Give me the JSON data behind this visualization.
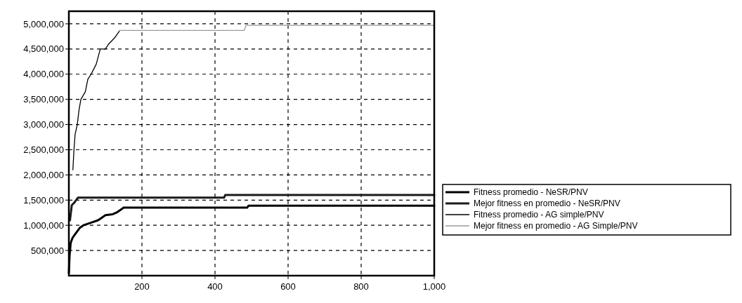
{
  "chart_data": {
    "type": "line",
    "xlim": [
      0,
      1000
    ],
    "xticks": [
      200,
      400,
      600,
      800,
      {
        "value": 1000,
        "label": "1,000"
      }
    ],
    "ylim": [
      0,
      5250000
    ],
    "yticks": [
      {
        "value": 500000,
        "label": "500,000"
      },
      {
        "value": 1000000,
        "label": "1,000,000"
      },
      {
        "value": 1500000,
        "label": "1,500,000"
      },
      {
        "value": 2000000,
        "label": "2,000,000"
      },
      {
        "value": 2500000,
        "label": "2,500,000"
      },
      {
        "value": 3000000,
        "label": "3,000,000"
      },
      {
        "value": 3500000,
        "label": "3,500,000"
      },
      {
        "value": 4000000,
        "label": "4,000,000"
      },
      {
        "value": 4500000,
        "label": "4,500,000"
      },
      {
        "value": 5000000,
        "label": "5,000,000"
      }
    ],
    "grid": true,
    "legend": "right",
    "marker": "none",
    "line_style": "solid",
    "series": [
      {
        "name": "Fitness promedio - NeSR/PNV",
        "color": "#000000",
        "x": [
          0,
          2,
          5,
          10,
          20,
          30,
          40,
          60,
          80,
          90,
          100,
          120,
          130,
          140,
          150,
          300,
          488,
          492,
          1000
        ],
        "values": [
          50000,
          400000,
          650000,
          750000,
          850000,
          950000,
          1000000,
          1050000,
          1100000,
          1150000,
          1200000,
          1220000,
          1250000,
          1300000,
          1350000,
          1350000,
          1350000,
          1390000,
          1390000
        ]
      },
      {
        "name": "Mejor fitness  en promedio - NeSR/PNV",
        "color": "#1a1a1a",
        "x": [
          3,
          8,
          15,
          25,
          425,
          428,
          1000
        ],
        "values": [
          1100000,
          1400000,
          1450000,
          1550000,
          1550000,
          1600000,
          1600000
        ]
      },
      {
        "name": "Fitness promedio - AG simple/PNV",
        "color": "#000000",
        "x": [
          11,
          14,
          17,
          23,
          28,
          33,
          45,
          52,
          61,
          75,
          86,
          100,
          109,
          125,
          138
        ],
        "values": [
          2100000,
          2500000,
          2800000,
          3000000,
          3300000,
          3500000,
          3650000,
          3900000,
          4000000,
          4200000,
          4500000,
          4500000,
          4600000,
          4720000,
          4850000
        ]
      },
      {
        "name": "Mejor fitness  en promedio - AG Simple/PNV",
        "color": "#9a9a9a",
        "x": [
          138,
          480,
          485,
          1000
        ],
        "values": [
          4870000,
          4870000,
          4970000,
          4970000
        ]
      }
    ]
  }
}
